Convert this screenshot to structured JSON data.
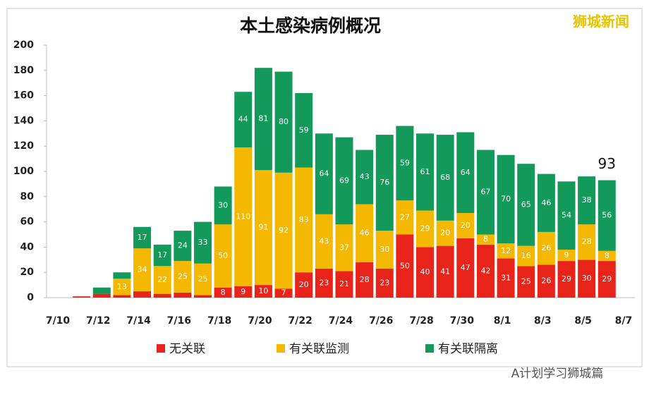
{
  "chart_data": {
    "type": "stacked_bar",
    "title": "本土感染病例概况",
    "categories": [
      "7/10",
      null,
      "7/12",
      null,
      "7/14",
      null,
      "7/16",
      null,
      "7/18",
      null,
      "7/20",
      null,
      "7/22",
      null,
      "7/24",
      null,
      "7/26",
      null,
      "7/28",
      null,
      "7/30",
      null,
      "8/1",
      null,
      "8/3",
      null,
      "8/5",
      null,
      "8/7"
    ],
    "series": [
      {
        "name": "无关联",
        "color": "#e8231a",
        "values": [
          null,
          1,
          3,
          2,
          5,
          3,
          4,
          2,
          8,
          9,
          10,
          7,
          20,
          23,
          21,
          28,
          23,
          50,
          40,
          41,
          47,
          42,
          31,
          25,
          26,
          29,
          30,
          29,
          null
        ]
      },
      {
        "name": "有关联监测",
        "color": "#f5b800",
        "values": [
          null,
          0,
          0,
          13,
          34,
          22,
          25,
          25,
          50,
          110,
          91,
          92,
          83,
          43,
          37,
          46,
          30,
          27,
          29,
          20,
          20,
          8,
          12,
          16,
          26,
          9,
          28,
          8,
          null
        ]
      },
      {
        "name": "有关联隔离",
        "color": "#139a5a",
        "values": [
          null,
          0,
          5,
          5,
          17,
          17,
          24,
          33,
          30,
          44,
          81,
          80,
          59,
          64,
          69,
          43,
          76,
          59,
          61,
          68,
          64,
          67,
          70,
          65,
          46,
          54,
          38,
          56,
          null
        ]
      }
    ],
    "ylim": [
      0,
      200
    ],
    "yticks": [
      0,
      20,
      40,
      60,
      80,
      100,
      120,
      140,
      160,
      180,
      200
    ],
    "grid": false,
    "annotations": [
      "93"
    ],
    "watermarks": [
      "狮城新闻",
      "A计划学习狮城篇"
    ]
  }
}
